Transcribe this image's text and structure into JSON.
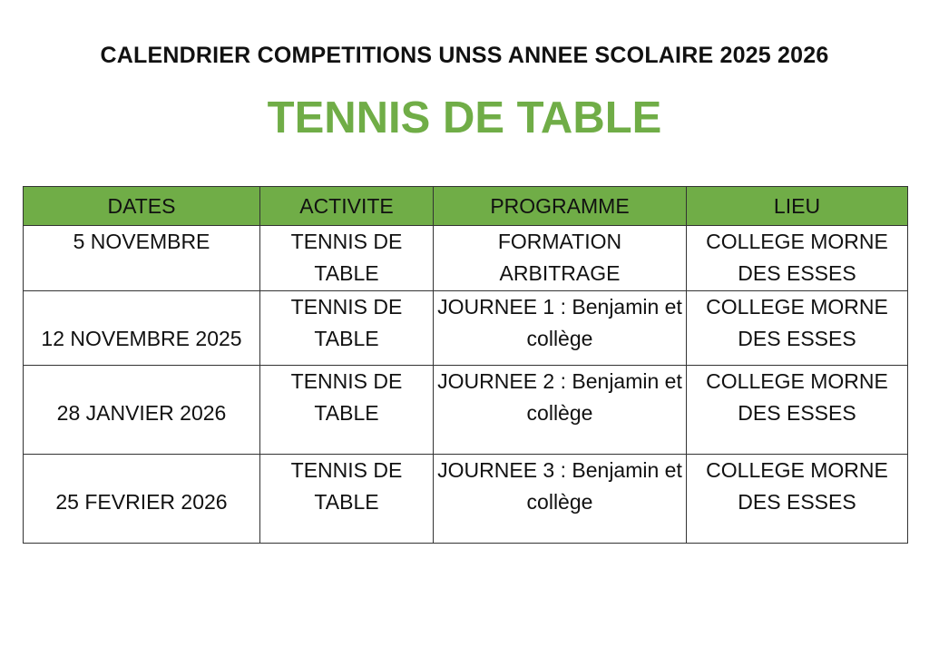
{
  "header": {
    "title": "CALENDRIER COMPETITIONS UNSS ANNEE SCOLAIRE 2025 2026",
    "subtitle": "TENNIS DE TABLE"
  },
  "colors": {
    "accent": "#70ad47"
  },
  "table": {
    "columns": [
      "DATES",
      "ACTIVITE",
      "PROGRAMME",
      "LIEU"
    ],
    "rows": [
      {
        "date": "5 NOVEMBRE",
        "activite": "TENNIS DE TABLE",
        "programme": "FORMATION ARBITRAGE",
        "lieu": "COLLEGE MORNE DES ESSES"
      },
      {
        "date": "12 NOVEMBRE 2025",
        "activite": "TENNIS DE TABLE",
        "programme": "JOURNEE 1 : Benjamin et collège",
        "lieu": "COLLEGE MORNE DES ESSES"
      },
      {
        "date": "28 JANVIER 2026",
        "activite": "TENNIS DE TABLE",
        "programme": "JOURNEE 2 : Benjamin et collège",
        "lieu": "COLLEGE MORNE DES ESSES"
      },
      {
        "date": "25 FEVRIER 2026",
        "activite": "TENNIS DE TABLE",
        "programme": "JOURNEE 3 : Benjamin et collège",
        "lieu": "COLLEGE MORNE DES ESSES"
      }
    ]
  }
}
